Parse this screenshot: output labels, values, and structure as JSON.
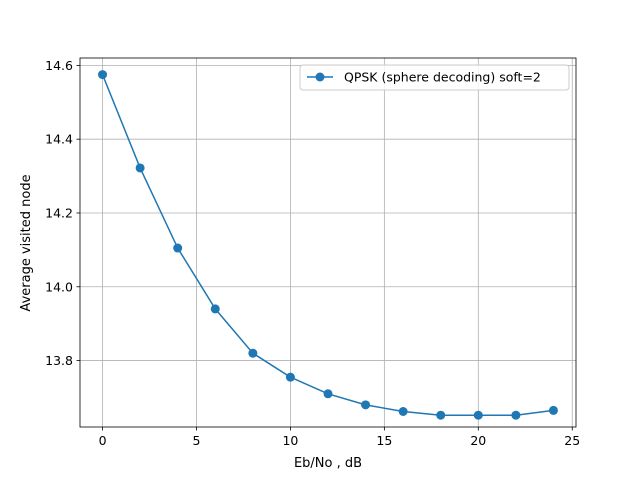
{
  "chart_data": {
    "type": "line",
    "title": "",
    "xlabel": "Eb/No , dB",
    "ylabel": "Average visited node",
    "xlim": [
      -1.2,
      25.2
    ],
    "ylim": [
      13.62,
      14.62
    ],
    "xticks": [
      0,
      5,
      10,
      15,
      20,
      25
    ],
    "yticks": [
      13.8,
      14.0,
      14.2,
      14.4,
      14.6
    ],
    "ytick_labels": [
      "13.8",
      "14.0",
      "14.2",
      "14.4",
      "14.6"
    ],
    "grid": true,
    "legend_position": "top-right",
    "series": [
      {
        "name": "QPSK (sphere decoding) soft=2",
        "color": "#1f77b4",
        "marker": "circle",
        "x": [
          0,
          2,
          4,
          6,
          8,
          10,
          12,
          14,
          16,
          18,
          20,
          22,
          24
        ],
        "y": [
          14.575,
          14.322,
          14.105,
          13.94,
          13.82,
          13.755,
          13.71,
          13.68,
          13.662,
          13.652,
          13.652,
          13.652,
          13.665
        ]
      }
    ]
  }
}
